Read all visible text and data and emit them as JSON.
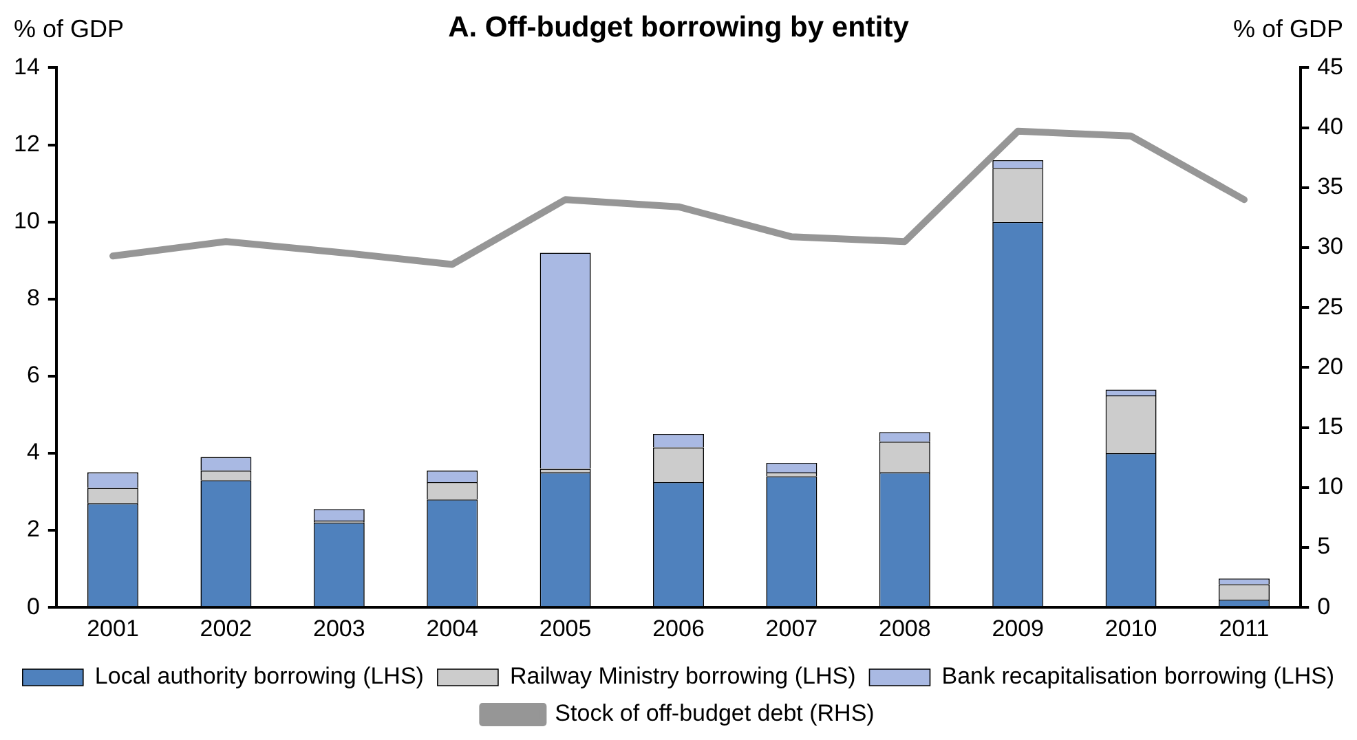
{
  "chart_data": {
    "type": "bar",
    "title": "A. Off-budget borrowing by entity",
    "ylabel": "% of GDP",
    "y2label": "% of GDP",
    "categories": [
      "2001",
      "2002",
      "2003",
      "2004",
      "2005",
      "2006",
      "2007",
      "2008",
      "2009",
      "2010",
      "2011"
    ],
    "stacked": true,
    "series": [
      {
        "name": "Local authority borrowing (LHS)",
        "color": "#4f81bd",
        "values": [
          2.7,
          3.3,
          2.2,
          2.8,
          3.5,
          3.25,
          3.4,
          3.5,
          10,
          4,
          0.2
        ]
      },
      {
        "name": "Railway Ministry borrowing (LHS)",
        "color": "#cccccc",
        "values": [
          0.4,
          0.25,
          0.05,
          0.45,
          0.1,
          0.9,
          0.1,
          0.8,
          1.4,
          1.5,
          0.4
        ]
      },
      {
        "name": "Bank recapitalisation borrowing (LHS)",
        "color": "#a9b9e3",
        "values": [
          0.4,
          0.35,
          0.3,
          0.3,
          5.6,
          0.35,
          0.25,
          0.25,
          0.2,
          0.15,
          0.15
        ]
      },
      {
        "name": "Stock of off-budget debt (RHS)",
        "type": "line",
        "axis": "y2",
        "color": "#969696",
        "values": [
          29.3,
          30.5,
          29.6,
          28.6,
          34.0,
          33.4,
          30.9,
          30.5,
          39.7,
          39.3,
          34.0
        ]
      }
    ],
    "ylim": [
      0,
      14
    ],
    "yticks": [
      0,
      2,
      4,
      6,
      8,
      10,
      12,
      14
    ],
    "y2lim": [
      0,
      45
    ],
    "y2ticks": [
      0,
      5,
      10,
      15,
      20,
      25,
      30,
      35,
      40,
      45
    ],
    "grid": false,
    "legend": "bottom",
    "marker": "none",
    "line_style": "solid"
  }
}
